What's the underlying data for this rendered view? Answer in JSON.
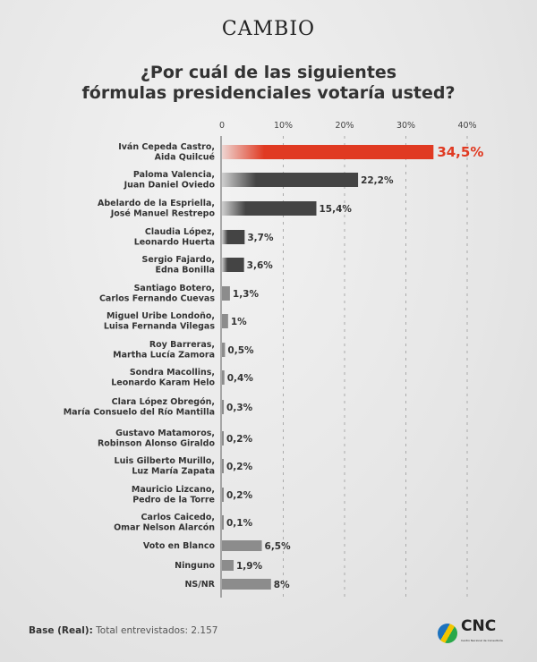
{
  "brand": "CAMBIO",
  "title_line1": "¿Por cuál de las siguientes",
  "title_line2": "fórmulas presidenciales votaría usted?",
  "footer": {
    "base_label": "Base (Real):",
    "base_text": " Total entrevistados: 2.157"
  },
  "logo": {
    "name": "CNC",
    "subtitle": "Centro Nacional de Consultoría"
  },
  "colors": {
    "highlight": "#e03a22",
    "candidate": "#444444",
    "other": "#8c8c8c"
  },
  "chart_data": {
    "type": "bar",
    "orientation": "horizontal",
    "title": "¿Por cuál de las siguientes fórmulas presidenciales votaría usted?",
    "xlim": [
      0,
      40
    ],
    "xticks": [
      "0",
      "10%",
      "20%",
      "30%",
      "40%"
    ],
    "grid": true,
    "categories": [
      [
        "Iván Cepeda Castro,",
        "Aida Quilcué"
      ],
      [
        "Paloma Valencia,",
        "Juan Daniel Oviedo"
      ],
      [
        "Abelardo de la Espriella,",
        "José Manuel Restrepo"
      ],
      [
        "Claudia López,",
        "Leonardo Huerta"
      ],
      [
        "Sergio Fajardo,",
        "Edna Bonilla"
      ],
      [
        "Santiago Botero,",
        "Carlos Fernando Cuevas"
      ],
      [
        "Miguel Uribe Londoño,",
        "Luisa Fernanda Vilegas"
      ],
      [
        "Roy Barreras,",
        "Martha Lucía Zamora"
      ],
      [
        "Sondra Macollins,",
        "Leonardo Karam Helo"
      ],
      [
        "Clara López Obregón,",
        "María Consuelo del Río Mantilla"
      ],
      [
        "Gustavo Matamoros,",
        "Robinson Alonso Giraldo"
      ],
      [
        "Luis Gilberto Murillo,",
        "Luz María Zapata"
      ],
      [
        "Mauricio Lizcano,",
        "Pedro de la Torre"
      ],
      [
        "Carlos Caicedo,",
        "Omar Nelson Alarcón"
      ],
      [
        "Voto en Blanco"
      ],
      [
        "Ninguno"
      ],
      [
        "NS/NR"
      ]
    ],
    "values": [
      34.5,
      22.2,
      15.4,
      3.7,
      3.6,
      1.3,
      1,
      0.5,
      0.4,
      0.3,
      0.2,
      0.2,
      0.2,
      0.1,
      6.5,
      1.9,
      8
    ],
    "value_labels": [
      "34,5%",
      "22,2%",
      "15,4%",
      "3,7%",
      "3,6%",
      "1,3%",
      "1%",
      "0,5%",
      "0,4%",
      "0,3%",
      "0,2%",
      "0,2%",
      "0,2%",
      "0,1%",
      "6,5%",
      "1,9%",
      "8%"
    ],
    "styles": [
      "highlight",
      "candidate",
      "candidate",
      "candidate",
      "candidate",
      "other",
      "other",
      "other",
      "other",
      "other",
      "other",
      "other",
      "other",
      "other",
      "other",
      "other",
      "other"
    ]
  }
}
